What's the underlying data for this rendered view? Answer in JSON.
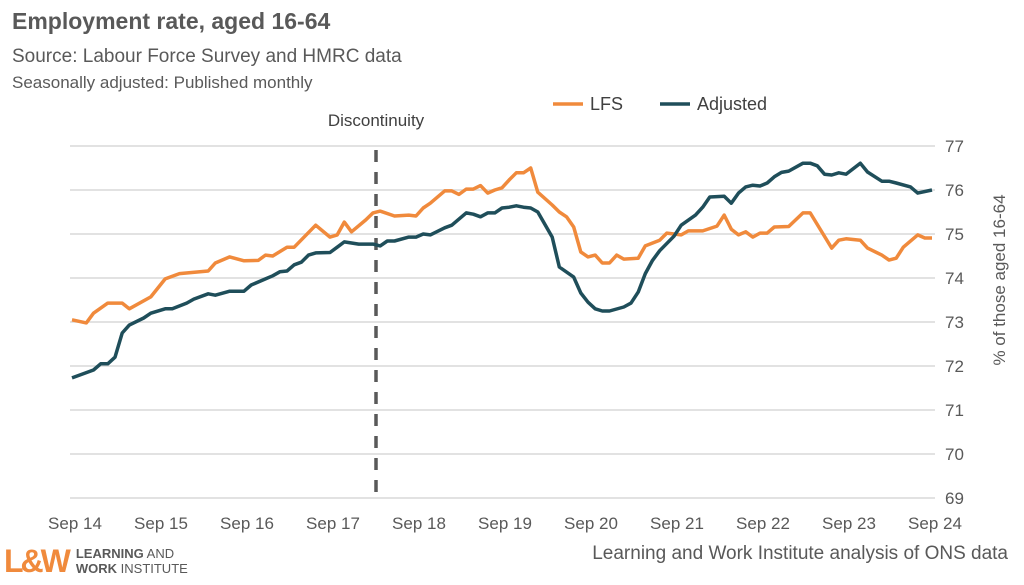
{
  "chart_data": {
    "type": "line",
    "title": "Employment rate, aged 16-64",
    "subtitle": "Source: Labour Force Survey and HMRC data",
    "subtitle2": "Seasonally adjusted: Published monthly",
    "ylabel": "% of those aged 16-64",
    "ylim": [
      69,
      77
    ],
    "y_axis_side": "right",
    "yticks": [
      69,
      70,
      71,
      72,
      73,
      74,
      75,
      76,
      77
    ],
    "xlim": [
      "2014-09",
      "2024-09"
    ],
    "xticks": [
      {
        "date": "2014-09",
        "label": "Sep 14"
      },
      {
        "date": "2015-09",
        "label": "Sep 15"
      },
      {
        "date": "2016-09",
        "label": "Sep 16"
      },
      {
        "date": "2017-09",
        "label": "Sep 17"
      },
      {
        "date": "2018-09",
        "label": "Sep 18"
      },
      {
        "date": "2019-09",
        "label": "Sep 19"
      },
      {
        "date": "2020-09",
        "label": "Sep 20"
      },
      {
        "date": "2021-09",
        "label": "Sep 21"
      },
      {
        "date": "2022-09",
        "label": "Sep 22"
      },
      {
        "date": "2023-09",
        "label": "Sep 23"
      },
      {
        "date": "2024-09",
        "label": "Sep 24"
      }
    ],
    "grid": true,
    "legend_position": "top-right",
    "annotation": {
      "label": "Discontinuity",
      "date": "2018-03",
      "style": "dashed-vertical"
    },
    "series": [
      {
        "name": "LFS",
        "color": "#f08a3c",
        "points": [
          [
            "2014-09",
            73.05
          ],
          [
            "2014-11",
            72.98
          ],
          [
            "2014-12",
            73.2
          ],
          [
            "2015-02",
            73.43
          ],
          [
            "2015-04",
            73.43
          ],
          [
            "2015-05",
            73.3
          ],
          [
            "2015-08",
            73.57
          ],
          [
            "2015-10",
            73.98
          ],
          [
            "2015-12",
            74.1
          ],
          [
            "2016-04",
            74.16
          ],
          [
            "2016-05",
            74.34
          ],
          [
            "2016-07",
            74.48
          ],
          [
            "2016-09",
            74.39
          ],
          [
            "2016-11",
            74.4
          ],
          [
            "2016-12",
            74.52
          ],
          [
            "2017-01",
            74.5
          ],
          [
            "2017-03",
            74.7
          ],
          [
            "2017-04",
            74.7
          ],
          [
            "2017-07",
            75.2
          ],
          [
            "2017-09",
            74.93
          ],
          [
            "2017-10",
            74.98
          ],
          [
            "2017-11",
            75.27
          ],
          [
            "2017-12",
            75.05
          ],
          [
            "2018-02",
            75.32
          ],
          [
            "2018-03",
            75.48
          ],
          [
            "2018-04",
            75.52
          ],
          [
            "2018-06",
            75.41
          ],
          [
            "2018-08",
            75.43
          ],
          [
            "2018-09",
            75.41
          ],
          [
            "2018-10",
            75.59
          ],
          [
            "2018-11",
            75.7
          ],
          [
            "2019-01",
            75.98
          ],
          [
            "2019-02",
            75.98
          ],
          [
            "2019-03",
            75.9
          ],
          [
            "2019-04",
            76.02
          ],
          [
            "2019-05",
            76.02
          ],
          [
            "2019-06",
            76.1
          ],
          [
            "2019-07",
            75.93
          ],
          [
            "2019-08",
            76.0
          ],
          [
            "2019-09",
            76.05
          ],
          [
            "2019-10",
            76.23
          ],
          [
            "2019-11",
            76.39
          ],
          [
            "2019-12",
            76.39
          ],
          [
            "2020-01",
            76.5
          ],
          [
            "2020-02",
            75.95
          ],
          [
            "2020-04",
            75.66
          ],
          [
            "2020-05",
            75.5
          ],
          [
            "2020-06",
            75.39
          ],
          [
            "2020-07",
            75.16
          ],
          [
            "2020-08",
            74.59
          ],
          [
            "2020-09",
            74.48
          ],
          [
            "2020-10",
            74.52
          ],
          [
            "2020-11",
            74.34
          ],
          [
            "2020-12",
            74.34
          ],
          [
            "2021-01",
            74.52
          ],
          [
            "2021-02",
            74.43
          ],
          [
            "2021-04",
            74.45
          ],
          [
            "2021-05",
            74.73
          ],
          [
            "2021-07",
            74.86
          ],
          [
            "2021-08",
            75.02
          ],
          [
            "2021-10",
            74.98
          ],
          [
            "2021-11",
            75.07
          ],
          [
            "2022-01",
            75.07
          ],
          [
            "2022-03",
            75.18
          ],
          [
            "2022-04",
            75.43
          ],
          [
            "2022-05",
            75.11
          ],
          [
            "2022-06",
            74.98
          ],
          [
            "2022-07",
            75.05
          ],
          [
            "2022-08",
            74.93
          ],
          [
            "2022-09",
            75.02
          ],
          [
            "2022-10",
            75.02
          ],
          [
            "2022-11",
            75.16
          ],
          [
            "2023-01",
            75.17
          ],
          [
            "2023-03",
            75.48
          ],
          [
            "2023-04",
            75.48
          ],
          [
            "2023-07",
            74.68
          ],
          [
            "2023-08",
            74.86
          ],
          [
            "2023-09",
            74.89
          ],
          [
            "2023-11",
            74.86
          ],
          [
            "2023-12",
            74.68
          ],
          [
            "2024-02",
            74.52
          ],
          [
            "2024-03",
            74.41
          ],
          [
            "2024-04",
            74.45
          ],
          [
            "2024-05",
            74.7
          ],
          [
            "2024-07",
            74.98
          ],
          [
            "2024-08",
            74.91
          ],
          [
            "2024-09",
            74.91
          ]
        ]
      },
      {
        "name": "Adjusted",
        "color": "#1f4e5a",
        "points": [
          [
            "2014-09",
            71.73
          ],
          [
            "2014-12",
            71.91
          ],
          [
            "2015-01",
            72.05
          ],
          [
            "2015-02",
            72.05
          ],
          [
            "2015-03",
            72.2
          ],
          [
            "2015-04",
            72.75
          ],
          [
            "2015-05",
            72.93
          ],
          [
            "2015-07",
            73.09
          ],
          [
            "2015-08",
            73.2
          ],
          [
            "2015-10",
            73.3
          ],
          [
            "2015-11",
            73.3
          ],
          [
            "2016-01",
            73.43
          ],
          [
            "2016-02",
            73.52
          ],
          [
            "2016-04",
            73.64
          ],
          [
            "2016-05",
            73.61
          ],
          [
            "2016-07",
            73.7
          ],
          [
            "2016-09",
            73.7
          ],
          [
            "2016-10",
            73.84
          ],
          [
            "2016-12",
            73.98
          ],
          [
            "2017-01",
            74.05
          ],
          [
            "2017-02",
            74.14
          ],
          [
            "2017-03",
            74.16
          ],
          [
            "2017-04",
            74.3
          ],
          [
            "2017-05",
            74.36
          ],
          [
            "2017-06",
            74.52
          ],
          [
            "2017-07",
            74.57
          ],
          [
            "2017-09",
            74.58
          ],
          [
            "2017-10",
            74.7
          ],
          [
            "2017-11",
            74.82
          ],
          [
            "2018-01",
            74.77
          ],
          [
            "2018-03",
            74.77
          ],
          [
            "2018-04",
            74.73
          ],
          [
            "2018-05",
            74.84
          ],
          [
            "2018-06",
            74.84
          ],
          [
            "2018-08",
            74.93
          ],
          [
            "2018-09",
            74.93
          ],
          [
            "2018-10",
            75.0
          ],
          [
            "2018-11",
            74.98
          ],
          [
            "2019-01",
            75.14
          ],
          [
            "2019-02",
            75.2
          ],
          [
            "2019-04",
            75.48
          ],
          [
            "2019-05",
            75.45
          ],
          [
            "2019-06",
            75.39
          ],
          [
            "2019-07",
            75.48
          ],
          [
            "2019-08",
            75.48
          ],
          [
            "2019-09",
            75.59
          ],
          [
            "2019-10",
            75.61
          ],
          [
            "2019-11",
            75.64
          ],
          [
            "2019-12",
            75.61
          ],
          [
            "2020-01",
            75.59
          ],
          [
            "2020-02",
            75.5
          ],
          [
            "2020-04",
            74.93
          ],
          [
            "2020-05",
            74.25
          ],
          [
            "2020-07",
            74.02
          ],
          [
            "2020-08",
            73.66
          ],
          [
            "2020-09",
            73.45
          ],
          [
            "2020-10",
            73.3
          ],
          [
            "2020-11",
            73.25
          ],
          [
            "2020-12",
            73.25
          ],
          [
            "2021-02",
            73.34
          ],
          [
            "2021-03",
            73.43
          ],
          [
            "2021-04",
            73.68
          ],
          [
            "2021-05",
            74.1
          ],
          [
            "2021-06",
            74.4
          ],
          [
            "2021-07",
            74.62
          ],
          [
            "2021-09",
            74.95
          ],
          [
            "2021-10",
            75.2
          ],
          [
            "2021-12",
            75.43
          ],
          [
            "2022-01",
            75.61
          ],
          [
            "2022-02",
            75.84
          ],
          [
            "2022-04",
            75.86
          ],
          [
            "2022-05",
            75.7
          ],
          [
            "2022-06",
            75.93
          ],
          [
            "2022-07",
            76.07
          ],
          [
            "2022-08",
            76.11
          ],
          [
            "2022-09",
            76.09
          ],
          [
            "2022-10",
            76.16
          ],
          [
            "2022-11",
            76.3
          ],
          [
            "2022-12",
            76.4
          ],
          [
            "2023-01",
            76.43
          ],
          [
            "2023-03",
            76.61
          ],
          [
            "2023-04",
            76.61
          ],
          [
            "2023-05",
            76.55
          ],
          [
            "2023-06",
            76.36
          ],
          [
            "2023-07",
            76.34
          ],
          [
            "2023-08",
            76.39
          ],
          [
            "2023-09",
            76.36
          ],
          [
            "2023-11",
            76.61
          ],
          [
            "2023-12",
            76.41
          ],
          [
            "2024-02",
            76.2
          ],
          [
            "2024-03",
            76.2
          ],
          [
            "2024-04",
            76.16
          ],
          [
            "2024-06",
            76.07
          ],
          [
            "2024-07",
            75.93
          ],
          [
            "2024-09",
            76.0
          ]
        ]
      }
    ]
  },
  "footer": {
    "source_note": "Learning and Work Institute analysis of ONS data"
  },
  "logo": {
    "mark": "L&W",
    "line1": "LEARNING AND",
    "line2": "WORK INSTITUTE"
  }
}
